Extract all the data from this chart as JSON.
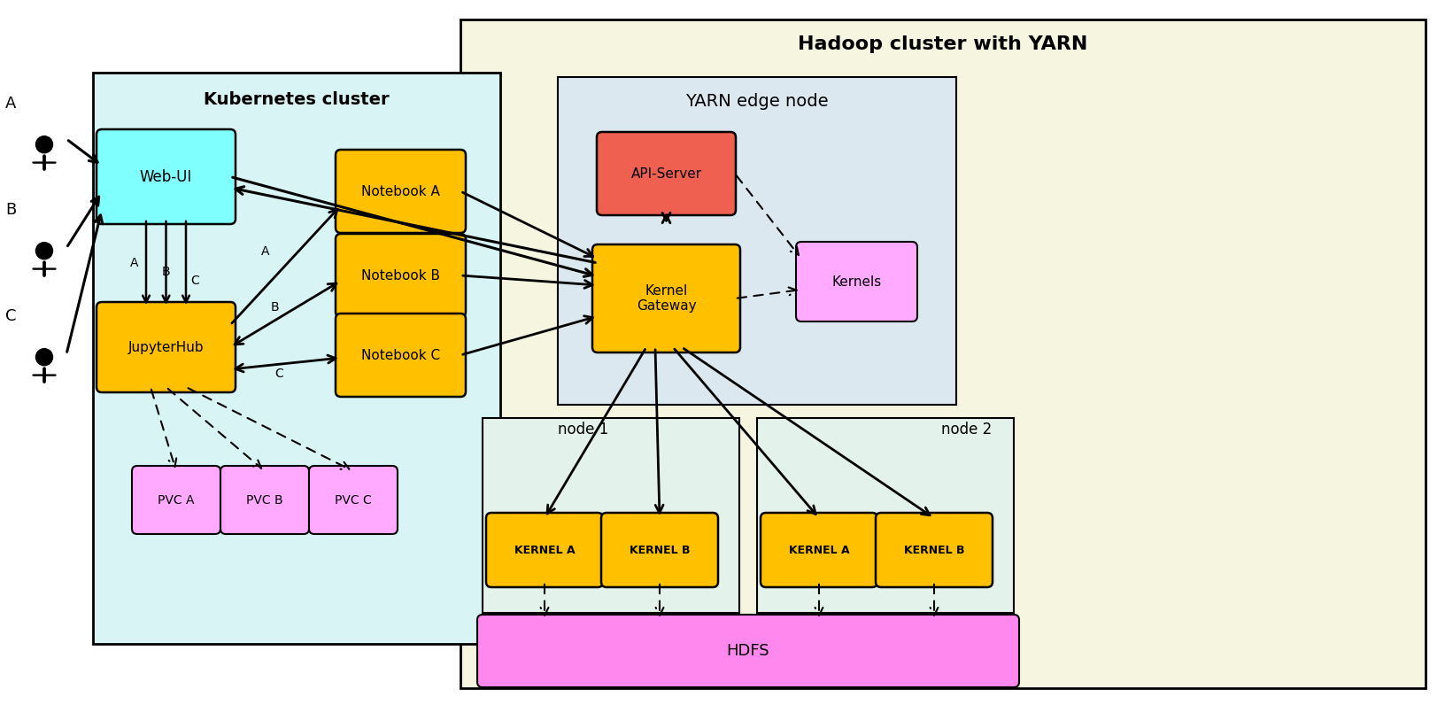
{
  "bg_color": "#ffffff",
  "hadoop_bg": "#f5f5e0",
  "k8s_bg": "#d8f4f4",
  "yarn_edge_bg": "#dce8f0",
  "node_bg": "#e4f2ec",
  "webui_color": "#80ffff",
  "notebook_color": "#ffc000",
  "jupyterhub_color": "#ffc000",
  "pvc_color": "#ffaaff",
  "api_server_color": "#f06050",
  "kernel_gateway_color": "#ffc000",
  "kernels_color": "#ffaaff",
  "kernel_node_color": "#ffc000",
  "hdfs_color": "#ff88ee",
  "title_hadoop": "Hadoop cluster with YARN",
  "title_k8s": "Kubernetes cluster",
  "title_yarn_edge": "YARN edge node",
  "title_node1": "node 1",
  "title_node2": "node 2",
  "label_webui": "Web-UI",
  "label_jupyterhub": "JupyterHub",
  "label_notebookA": "Notebook A",
  "label_notebookB": "Notebook B",
  "label_notebookC": "Notebook C",
  "label_pvcA": "PVC A",
  "label_pvcB": "PVC B",
  "label_pvcC": "PVC C",
  "label_apiserver": "API-Server",
  "label_kernelgw": "Kernel\nGateway",
  "label_kernels": "Kernels",
  "label_kernel_a1": "KERNEL A",
  "label_kernel_b1": "KERNEL B",
  "label_kernel_a2": "KERNEL A",
  "label_kernel_b2": "KERNEL B",
  "label_hdfs": "HDFS",
  "user_labels": [
    "A",
    "B",
    "C"
  ]
}
